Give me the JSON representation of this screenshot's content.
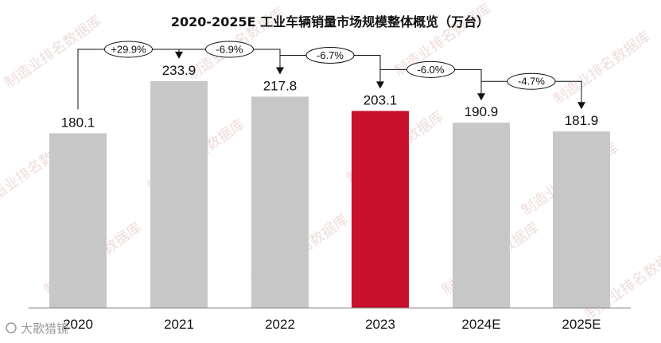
{
  "chart_data": {
    "type": "bar",
    "title": "2020-2025E 工业车辆销量市场规模整体概览（万台）",
    "categories": [
      "2020",
      "2021",
      "2022",
      "2023",
      "2024E",
      "2025E"
    ],
    "values": [
      180.1,
      233.9,
      217.8,
      203.1,
      190.9,
      181.9
    ],
    "value_labels": [
      "180.1",
      "233.9",
      "217.8",
      "203.1",
      "190.9",
      "181.9"
    ],
    "highlight_index": 3,
    "growth_rates": [
      "+29.9%",
      "-6.9%",
      "-6.7%",
      "-6.0%",
      "-4.7%"
    ],
    "ylim": [
      0,
      260
    ],
    "xlabel": "",
    "ylabel": "",
    "grid": false,
    "colors": {
      "bar": "#c7c7c7",
      "highlight": "#c8102e",
      "axis": "#888888"
    }
  },
  "watermark": {
    "text": "制造业排名数据库"
  },
  "footer": {
    "credit": "大歌猎镜"
  }
}
